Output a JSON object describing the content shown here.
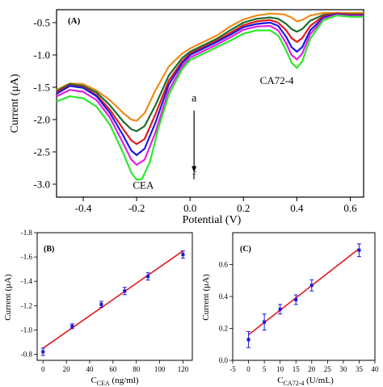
{
  "chart_data": [
    {
      "panel_label": "(A)",
      "type": "line",
      "xlabel": "Potential (V)",
      "ylabel": "Current (μA)",
      "xlim": [
        -0.5,
        0.65
      ],
      "ylim": [
        -3.2,
        -0.3
      ],
      "xticks": [
        -0.4,
        -0.2,
        0.0,
        0.2,
        0.4,
        0.6
      ],
      "xtick_labels": [
        "-0.4",
        "-0.2",
        "0.0",
        "0.2",
        "0.4",
        "0.6"
      ],
      "yticks": [
        -3.0,
        -2.5,
        -2.0,
        -1.5,
        -1.0,
        -0.5
      ],
      "ytick_labels": [
        "-3.0",
        "-2.5",
        "-2.0",
        "-1.5",
        "-1.0",
        "-0.5"
      ],
      "annotations": {
        "peak1": "CEA",
        "peak2": "CA72-4",
        "arrow_start": "a",
        "arrow_end": "f"
      },
      "series": [
        {
          "color": "#f08a1c",
          "points": [
            [
              -0.5,
              -1.54
            ],
            [
              -0.45,
              -1.44
            ],
            [
              -0.4,
              -1.45
            ],
            [
              -0.35,
              -1.55
            ],
            [
              -0.3,
              -1.7
            ],
            [
              -0.25,
              -1.9
            ],
            [
              -0.22,
              -2.0
            ],
            [
              -0.2,
              -2.02
            ],
            [
              -0.17,
              -1.9
            ],
            [
              -0.13,
              -1.55
            ],
            [
              -0.08,
              -1.18
            ],
            [
              -0.03,
              -0.98
            ],
            [
              0.0,
              -0.9
            ],
            [
              0.05,
              -0.8
            ],
            [
              0.1,
              -0.7
            ],
            [
              0.15,
              -0.56
            ],
            [
              0.2,
              -0.45
            ],
            [
              0.25,
              -0.39
            ],
            [
              0.3,
              -0.36
            ],
            [
              0.35,
              -0.37
            ],
            [
              0.38,
              -0.42
            ],
            [
              0.4,
              -0.48
            ],
            [
              0.42,
              -0.46
            ],
            [
              0.45,
              -0.39
            ],
            [
              0.5,
              -0.35
            ],
            [
              0.55,
              -0.35
            ],
            [
              0.6,
              -0.35
            ],
            [
              0.65,
              -0.35
            ]
          ]
        },
        {
          "color": "#1c6e2a",
          "points": [
            [
              -0.5,
              -1.56
            ],
            [
              -0.45,
              -1.45
            ],
            [
              -0.4,
              -1.48
            ],
            [
              -0.35,
              -1.58
            ],
            [
              -0.3,
              -1.78
            ],
            [
              -0.25,
              -2.03
            ],
            [
              -0.22,
              -2.15
            ],
            [
              -0.2,
              -2.18
            ],
            [
              -0.17,
              -2.1
            ],
            [
              -0.13,
              -1.78
            ],
            [
              -0.08,
              -1.32
            ],
            [
              -0.03,
              -1.05
            ],
            [
              0.0,
              -0.95
            ],
            [
              0.05,
              -0.85
            ],
            [
              0.1,
              -0.75
            ],
            [
              0.15,
              -0.62
            ],
            [
              0.2,
              -0.5
            ],
            [
              0.25,
              -0.44
            ],
            [
              0.3,
              -0.42
            ],
            [
              0.33,
              -0.44
            ],
            [
              0.36,
              -0.52
            ],
            [
              0.38,
              -0.6
            ],
            [
              0.4,
              -0.64
            ],
            [
              0.42,
              -0.6
            ],
            [
              0.45,
              -0.47
            ],
            [
              0.5,
              -0.38
            ],
            [
              0.55,
              -0.36
            ],
            [
              0.6,
              -0.37
            ],
            [
              0.65,
              -0.37
            ]
          ]
        },
        {
          "color": "#e41a1c",
          "points": [
            [
              -0.5,
              -1.58
            ],
            [
              -0.45,
              -1.47
            ],
            [
              -0.4,
              -1.5
            ],
            [
              -0.35,
              -1.62
            ],
            [
              -0.3,
              -1.85
            ],
            [
              -0.25,
              -2.15
            ],
            [
              -0.22,
              -2.32
            ],
            [
              -0.2,
              -2.38
            ],
            [
              -0.17,
              -2.3
            ],
            [
              -0.13,
              -1.92
            ],
            [
              -0.08,
              -1.4
            ],
            [
              -0.03,
              -1.1
            ],
            [
              0.0,
              -0.98
            ],
            [
              0.05,
              -0.88
            ],
            [
              0.1,
              -0.78
            ],
            [
              0.15,
              -0.66
            ],
            [
              0.2,
              -0.54
            ],
            [
              0.25,
              -0.48
            ],
            [
              0.3,
              -0.46
            ],
            [
              0.33,
              -0.5
            ],
            [
              0.36,
              -0.62
            ],
            [
              0.38,
              -0.74
            ],
            [
              0.4,
              -0.8
            ],
            [
              0.42,
              -0.74
            ],
            [
              0.45,
              -0.55
            ],
            [
              0.5,
              -0.4
            ],
            [
              0.55,
              -0.36
            ],
            [
              0.6,
              -0.38
            ],
            [
              0.65,
              -0.38
            ]
          ]
        },
        {
          "color": "#1a1adb",
          "points": [
            [
              -0.5,
              -1.6
            ],
            [
              -0.45,
              -1.48
            ],
            [
              -0.4,
              -1.51
            ],
            [
              -0.35,
              -1.64
            ],
            [
              -0.3,
              -1.9
            ],
            [
              -0.25,
              -2.25
            ],
            [
              -0.22,
              -2.48
            ],
            [
              -0.2,
              -2.55
            ],
            [
              -0.17,
              -2.45
            ],
            [
              -0.13,
              -2.05
            ],
            [
              -0.08,
              -1.46
            ],
            [
              -0.03,
              -1.13
            ],
            [
              0.0,
              -1.0
            ],
            [
              0.05,
              -0.9
            ],
            [
              0.1,
              -0.8
            ],
            [
              0.15,
              -0.69
            ],
            [
              0.2,
              -0.57
            ],
            [
              0.25,
              -0.52
            ],
            [
              0.3,
              -0.5
            ],
            [
              0.33,
              -0.55
            ],
            [
              0.36,
              -0.72
            ],
            [
              0.38,
              -0.88
            ],
            [
              0.4,
              -0.95
            ],
            [
              0.42,
              -0.88
            ],
            [
              0.45,
              -0.62
            ],
            [
              0.5,
              -0.42
            ],
            [
              0.55,
              -0.37
            ],
            [
              0.6,
              -0.39
            ],
            [
              0.65,
              -0.39
            ]
          ]
        },
        {
          "color": "#e020e0",
          "points": [
            [
              -0.5,
              -1.64
            ],
            [
              -0.45,
              -1.54
            ],
            [
              -0.4,
              -1.57
            ],
            [
              -0.35,
              -1.7
            ],
            [
              -0.3,
              -1.97
            ],
            [
              -0.25,
              -2.37
            ],
            [
              -0.22,
              -2.62
            ],
            [
              -0.2,
              -2.7
            ],
            [
              -0.17,
              -2.62
            ],
            [
              -0.13,
              -2.2
            ],
            [
              -0.08,
              -1.55
            ],
            [
              -0.03,
              -1.18
            ],
            [
              0.0,
              -1.04
            ],
            [
              0.05,
              -0.94
            ],
            [
              0.1,
              -0.84
            ],
            [
              0.15,
              -0.73
            ],
            [
              0.2,
              -0.61
            ],
            [
              0.25,
              -0.56
            ],
            [
              0.3,
              -0.55
            ],
            [
              0.33,
              -0.62
            ],
            [
              0.36,
              -0.82
            ],
            [
              0.38,
              -1.0
            ],
            [
              0.4,
              -1.07
            ],
            [
              0.42,
              -0.98
            ],
            [
              0.45,
              -0.68
            ],
            [
              0.5,
              -0.44
            ],
            [
              0.55,
              -0.38
            ],
            [
              0.6,
              -0.4
            ],
            [
              0.65,
              -0.4
            ]
          ]
        },
        {
          "color": "#2de82d",
          "points": [
            [
              -0.5,
              -1.72
            ],
            [
              -0.45,
              -1.64
            ],
            [
              -0.4,
              -1.67
            ],
            [
              -0.35,
              -1.8
            ],
            [
              -0.3,
              -2.08
            ],
            [
              -0.25,
              -2.52
            ],
            [
              -0.22,
              -2.82
            ],
            [
              -0.2,
              -2.93
            ],
            [
              -0.18,
              -2.92
            ],
            [
              -0.15,
              -2.65
            ],
            [
              -0.12,
              -2.15
            ],
            [
              -0.08,
              -1.62
            ],
            [
              -0.03,
              -1.22
            ],
            [
              0.0,
              -1.08
            ],
            [
              0.05,
              -0.98
            ],
            [
              0.1,
              -0.88
            ],
            [
              0.15,
              -0.78
            ],
            [
              0.2,
              -0.67
            ],
            [
              0.25,
              -0.62
            ],
            [
              0.3,
              -0.62
            ],
            [
              0.33,
              -0.7
            ],
            [
              0.36,
              -0.93
            ],
            [
              0.38,
              -1.12
            ],
            [
              0.4,
              -1.2
            ],
            [
              0.42,
              -1.1
            ],
            [
              0.45,
              -0.75
            ],
            [
              0.5,
              -0.46
            ],
            [
              0.55,
              -0.39
            ],
            [
              0.6,
              -0.41
            ],
            [
              0.65,
              -0.41
            ]
          ]
        }
      ]
    },
    {
      "panel_label": "(B)",
      "type": "scatter",
      "xlabel_main": "C",
      "xlabel_sub": "CEA",
      "xlabel_unit": " (ng/ml)",
      "ylabel": "Current (μA)",
      "xlim": [
        -5,
        128
      ],
      "ylim": [
        -0.75,
        -1.8
      ],
      "xticks": [
        0,
        20,
        40,
        60,
        80,
        100,
        120
      ],
      "xtick_labels": [
        "0",
        "20",
        "40",
        "60",
        "80",
        "100",
        "120"
      ],
      "yticks": [
        -0.8,
        -1.0,
        -1.2,
        -1.4,
        -1.6,
        -1.8
      ],
      "ytick_labels": [
        "-0.8",
        "-1.0",
        "-1.2",
        "-1.4",
        "-1.6",
        "-1.8"
      ],
      "points": [
        {
          "x": 0,
          "y": -0.82,
          "err": 0.03
        },
        {
          "x": 25,
          "y": -1.03,
          "err": 0.02
        },
        {
          "x": 50,
          "y": -1.21,
          "err": 0.025
        },
        {
          "x": 70,
          "y": -1.32,
          "err": 0.03
        },
        {
          "x": 90,
          "y": -1.44,
          "err": 0.03
        },
        {
          "x": 120,
          "y": -1.62,
          "err": 0.03
        }
      ],
      "fit_line": [
        [
          0,
          -0.85
        ],
        [
          120,
          -1.65
        ]
      ]
    },
    {
      "panel_label": "(C)",
      "type": "scatter",
      "xlabel_main": "C",
      "xlabel_sub": "CA72-4",
      "xlabel_unit": " (U/mL)",
      "ylabel": "Current (μA)",
      "xlim": [
        -5,
        40
      ],
      "ylim": [
        0.0,
        0.8
      ],
      "xticks": [
        -5,
        0,
        5,
        10,
        15,
        20,
        25,
        30,
        35,
        40
      ],
      "xtick_labels": [
        "-5",
        "0",
        "5",
        "10",
        "15",
        "20",
        "25",
        "30",
        "35",
        "40"
      ],
      "yticks": [
        0.0,
        0.2,
        0.4,
        0.6
      ],
      "ytick_labels": [
        "0.0",
        "0.2",
        "0.4",
        "0.6"
      ],
      "points": [
        {
          "x": 0,
          "y": 0.13,
          "err": 0.05
        },
        {
          "x": 5,
          "y": 0.24,
          "err": 0.05
        },
        {
          "x": 10,
          "y": 0.32,
          "err": 0.03
        },
        {
          "x": 15,
          "y": 0.38,
          "err": 0.03
        },
        {
          "x": 20,
          "y": 0.47,
          "err": 0.035
        },
        {
          "x": 35,
          "y": 0.69,
          "err": 0.04
        }
      ],
      "fit_line": [
        [
          0,
          0.16
        ],
        [
          35,
          0.7
        ]
      ]
    }
  ]
}
